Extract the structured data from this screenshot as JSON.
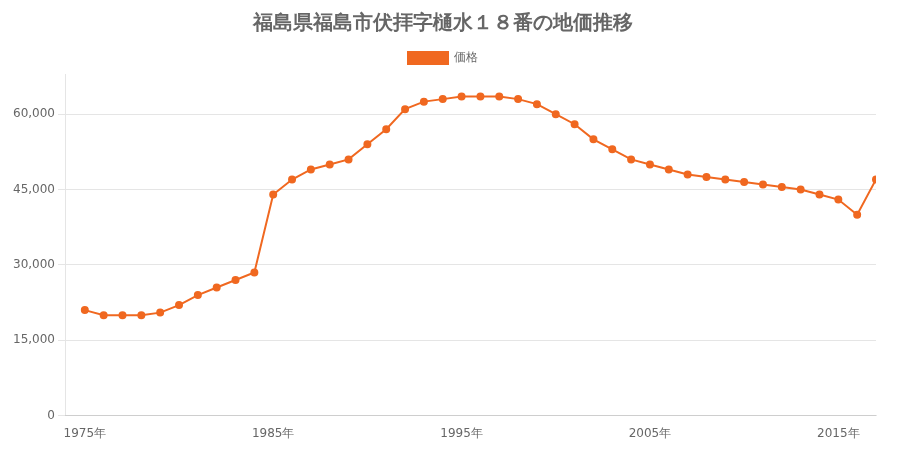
{
  "chart_data": {
    "type": "line",
    "title": "福島県福島市伏拝字樋水１８番の地価推移",
    "x": [
      1975,
      1976,
      1977,
      1978,
      1979,
      1980,
      1981,
      1982,
      1983,
      1984,
      1985,
      1986,
      1987,
      1988,
      1989,
      1990,
      1991,
      1992,
      1993,
      1994,
      1995,
      1996,
      1997,
      1998,
      1999,
      2000,
      2001,
      2002,
      2003,
      2004,
      2005,
      2006,
      2007,
      2008,
      2009,
      2010,
      2011,
      2012,
      2013,
      2014,
      2015,
      2016,
      2017
    ],
    "series": [
      {
        "name": "価格",
        "color": "#f06820",
        "marker": "circle",
        "values": [
          21000,
          20000,
          20000,
          20000,
          20500,
          22000,
          24000,
          25500,
          27000,
          28500,
          44000,
          47000,
          49000,
          50000,
          51000,
          54000,
          57000,
          61000,
          62500,
          63000,
          63500,
          63500,
          63500,
          63000,
          62000,
          60000,
          58000,
          55000,
          53000,
          51000,
          50000,
          49000,
          48000,
          47500,
          47000,
          46500,
          46000,
          45500,
          45000,
          44000,
          43000,
          40000,
          47000
        ]
      }
    ],
    "xlim": [
      1974,
      2017
    ],
    "xticks": [
      {
        "value": 1975,
        "label": "1975年"
      },
      {
        "value": 1985,
        "label": "1985年"
      },
      {
        "value": 1995,
        "label": "1995年"
      },
      {
        "value": 2005,
        "label": "2005年"
      },
      {
        "value": 2015,
        "label": "2015年"
      }
    ],
    "ylim": [
      0,
      68000
    ],
    "yticks": [
      0,
      {
        "value": 15000,
        "label": "15,000"
      },
      {
        "value": 30000,
        "label": "30,000"
      },
      {
        "value": 45000,
        "label": "45,000"
      },
      {
        "value": 60000,
        "label": "60,000"
      }
    ],
    "grid": "y",
    "legend": "top"
  }
}
